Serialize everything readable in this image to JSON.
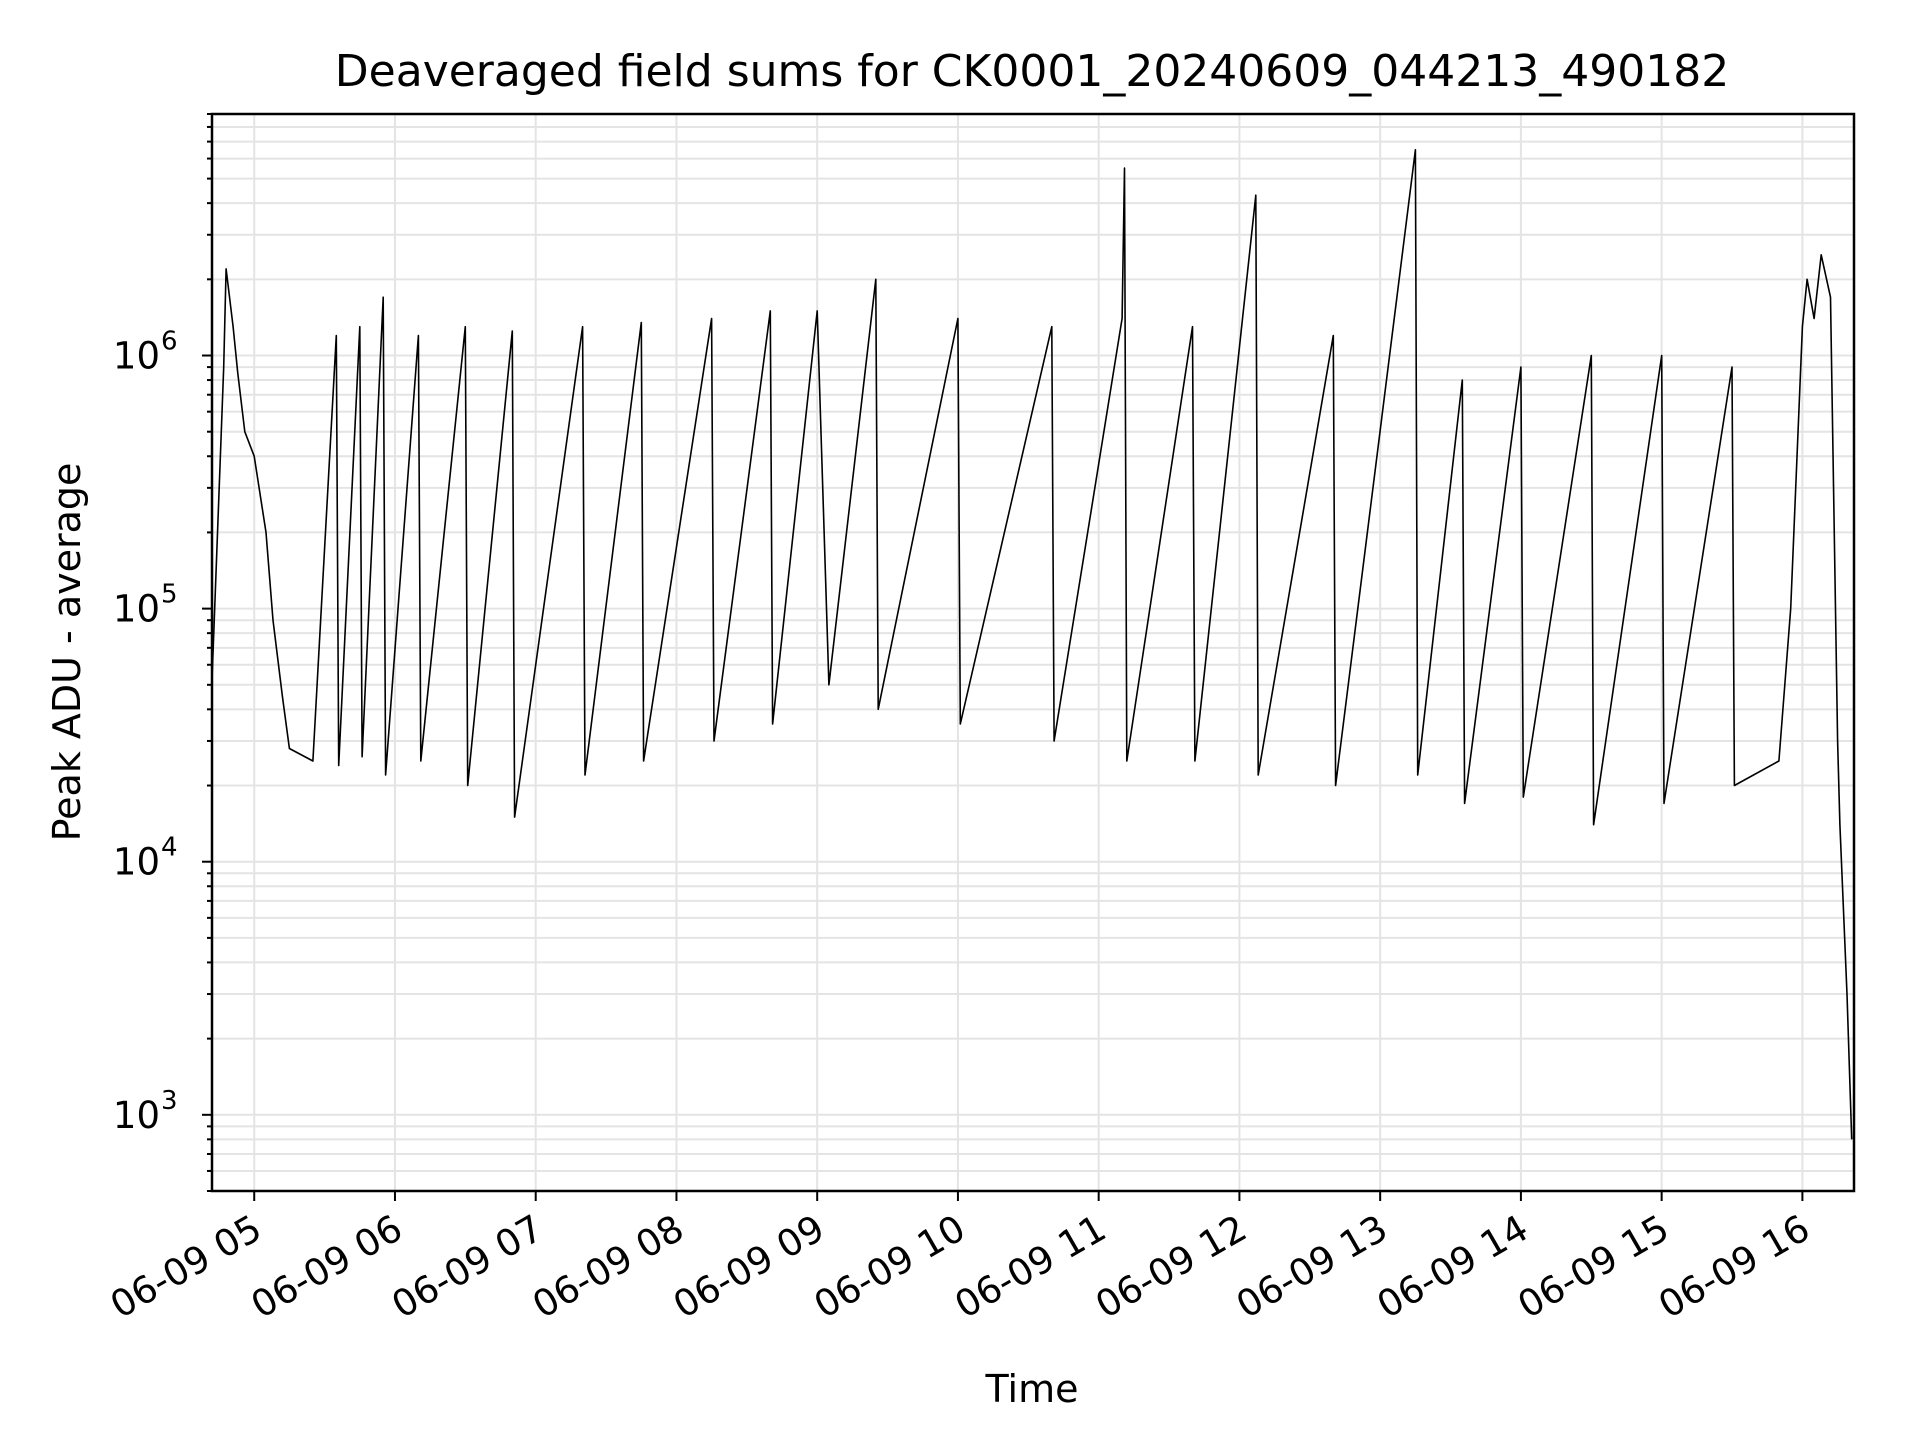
{
  "chart_data": {
    "type": "line",
    "title": "Deaveraged field sums for CK0001_20240609_044213_490182",
    "xlabel": "Time",
    "ylabel": "Peak ADU - average",
    "yscale": "log",
    "ylim": [
      500,
      9000000
    ],
    "xlim": [
      "2024-06-09 04:42",
      "2024-06-09 16:22"
    ],
    "grid": "on (major and minor)",
    "line_color": "#000000",
    "x_ticks": [
      {
        "value": "2024-06-09 05:00",
        "label": "06-09 05"
      },
      {
        "value": "2024-06-09 06:00",
        "label": "06-09 06"
      },
      {
        "value": "2024-06-09 07:00",
        "label": "06-09 07"
      },
      {
        "value": "2024-06-09 08:00",
        "label": "06-09 08"
      },
      {
        "value": "2024-06-09 09:00",
        "label": "06-09 09"
      },
      {
        "value": "2024-06-09 10:00",
        "label": "06-09 10"
      },
      {
        "value": "2024-06-09 11:00",
        "label": "06-09 11"
      },
      {
        "value": "2024-06-09 12:00",
        "label": "06-09 12"
      },
      {
        "value": "2024-06-09 13:00",
        "label": "06-09 13"
      },
      {
        "value": "2024-06-09 14:00",
        "label": "06-09 14"
      },
      {
        "value": "2024-06-09 15:00",
        "label": "06-09 15"
      },
      {
        "value": "2024-06-09 16:00",
        "label": "06-09 16"
      }
    ],
    "y_ticks": [
      {
        "value": 1000,
        "base": "10",
        "exp": "3"
      },
      {
        "value": 10000,
        "base": "10",
        "exp": "4"
      },
      {
        "value": 100000,
        "base": "10",
        "exp": "5"
      },
      {
        "value": 1000000,
        "base": "10",
        "exp": "6"
      }
    ],
    "series": [
      {
        "points": [
          [
            "2024-06-09 04:42",
            52000
          ],
          [
            "2024-06-09 04:47",
            900000
          ],
          [
            "2024-06-09 04:48",
            2200000
          ],
          [
            "2024-06-09 04:51",
            1300000
          ],
          [
            "2024-06-09 04:53",
            850000
          ],
          [
            "2024-06-09 04:56",
            500000
          ],
          [
            "2024-06-09 05:00",
            400000
          ],
          [
            "2024-06-09 05:05",
            200000
          ],
          [
            "2024-06-09 05:08",
            90000
          ],
          [
            "2024-06-09 05:12",
            45000
          ],
          [
            "2024-06-09 05:15",
            28000
          ],
          [
            "2024-06-09 05:25",
            25000
          ],
          [
            "2024-06-09 05:35",
            1200000
          ],
          [
            "2024-06-09 05:36",
            24000
          ],
          [
            "2024-06-09 05:45",
            1300000
          ],
          [
            "2024-06-09 05:46",
            26000
          ],
          [
            "2024-06-09 05:55",
            1700000
          ],
          [
            "2024-06-09 05:56",
            22000
          ],
          [
            "2024-06-09 06:10",
            1200000
          ],
          [
            "2024-06-09 06:11",
            25000
          ],
          [
            "2024-06-09 06:30",
            1300000
          ],
          [
            "2024-06-09 06:31",
            20000
          ],
          [
            "2024-06-09 06:50",
            1250000
          ],
          [
            "2024-06-09 06:51",
            15000
          ],
          [
            "2024-06-09 07:20",
            1300000
          ],
          [
            "2024-06-09 07:21",
            22000
          ],
          [
            "2024-06-09 07:45",
            1350000
          ],
          [
            "2024-06-09 07:46",
            25000
          ],
          [
            "2024-06-09 08:15",
            1400000
          ],
          [
            "2024-06-09 08:16",
            30000
          ],
          [
            "2024-06-09 08:40",
            1500000
          ],
          [
            "2024-06-09 08:41",
            35000
          ],
          [
            "2024-06-09 09:00",
            1500000
          ],
          [
            "2024-06-09 09:05",
            50000
          ],
          [
            "2024-06-09 09:25",
            2000000
          ],
          [
            "2024-06-09 09:26",
            40000
          ],
          [
            "2024-06-09 10:00",
            1400000
          ],
          [
            "2024-06-09 10:01",
            35000
          ],
          [
            "2024-06-09 10:40",
            1300000
          ],
          [
            "2024-06-09 10:41",
            30000
          ],
          [
            "2024-06-09 11:10",
            1400000
          ],
          [
            "2024-06-09 11:11",
            5500000
          ],
          [
            "2024-06-09 11:12",
            25000
          ],
          [
            "2024-06-09 11:40",
            1300000
          ],
          [
            "2024-06-09 11:41",
            25000
          ],
          [
            "2024-06-09 12:07",
            4300000
          ],
          [
            "2024-06-09 12:08",
            22000
          ],
          [
            "2024-06-09 12:40",
            1200000
          ],
          [
            "2024-06-09 12:41",
            20000
          ],
          [
            "2024-06-09 13:15",
            6500000
          ],
          [
            "2024-06-09 13:16",
            22000
          ],
          [
            "2024-06-09 13:35",
            800000
          ],
          [
            "2024-06-09 13:36",
            17000
          ],
          [
            "2024-06-09 14:00",
            900000
          ],
          [
            "2024-06-09 14:01",
            18000
          ],
          [
            "2024-06-09 14:30",
            1000000
          ],
          [
            "2024-06-09 14:31",
            14000
          ],
          [
            "2024-06-09 15:00",
            1000000
          ],
          [
            "2024-06-09 15:01",
            17000
          ],
          [
            "2024-06-09 15:30",
            900000
          ],
          [
            "2024-06-09 15:31",
            20000
          ],
          [
            "2024-06-09 15:50",
            25000
          ],
          [
            "2024-06-09 15:55",
            100000
          ],
          [
            "2024-06-09 16:00",
            1300000
          ],
          [
            "2024-06-09 16:02",
            2000000
          ],
          [
            "2024-06-09 16:05",
            1400000
          ],
          [
            "2024-06-09 16:08",
            2500000
          ],
          [
            "2024-06-09 16:12",
            1700000
          ],
          [
            "2024-06-09 16:15",
            30000
          ],
          [
            "2024-06-09 16:16",
            14000
          ],
          [
            "2024-06-09 16:19",
            3000
          ],
          [
            "2024-06-09 16:21",
            800
          ]
        ]
      }
    ]
  }
}
